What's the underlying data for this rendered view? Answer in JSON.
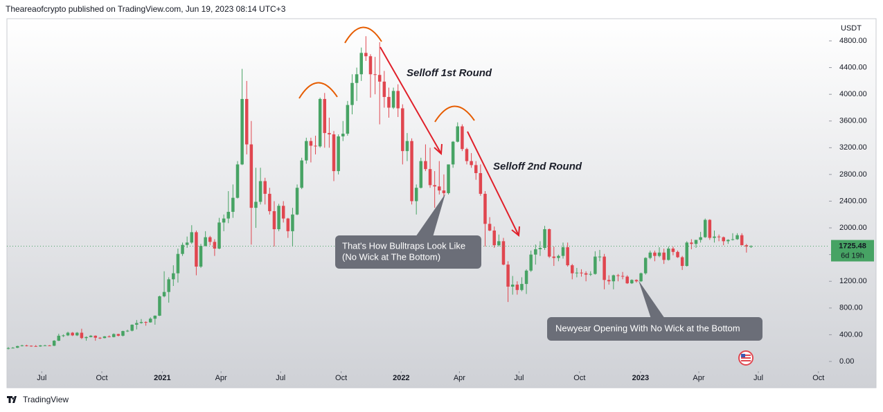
{
  "header": {
    "text": "Theareaofcrypto published on TradingView.com, Jun 19, 2023 08:14 UTC+3"
  },
  "footer": {
    "text": "TradingView"
  },
  "chart_data": {
    "type": "candlestick",
    "unit": "USDT",
    "up_color": "#47a364",
    "down_color": "#e0464f",
    "countdown": "6d 19h",
    "grid": false,
    "annotations": [
      "Selloff 1st Round",
      "Selloff 2nd Round",
      "That's How Bulltraps Look Like",
      "(No Wick at The Bottom)",
      "Newyear Opening With No Wick at the Bottom"
    ],
    "ylim": [
      -135,
      5132
    ],
    "yticks": [
      {
        "value": 0,
        "label": "0.00"
      },
      {
        "value": 400,
        "label": "400.00"
      },
      {
        "value": 800,
        "label": "800.00"
      },
      {
        "value": 1200,
        "label": "1200.00"
      },
      {
        "value": 1600,
        "label": "1600.00"
      },
      {
        "value": 2000,
        "label": "2000.00"
      },
      {
        "value": 2400,
        "label": "2400.00"
      },
      {
        "value": 2800,
        "label": "2800.00"
      },
      {
        "value": 3200,
        "label": "3200.00"
      },
      {
        "value": 3600,
        "label": "3600.00"
      },
      {
        "value": 4000,
        "label": "4000.00"
      },
      {
        "value": 4400,
        "label": "4400.00"
      },
      {
        "value": 4800,
        "label": "4800.00"
      }
    ],
    "xlim": [
      -0.3,
      178.7
    ],
    "xticks": [
      {
        "value": 7.3,
        "label": "Jul"
      },
      {
        "value": 20.4,
        "label": "Oct"
      },
      {
        "value": 33.6,
        "label": "2021"
      },
      {
        "value": 46.4,
        "label": "Apr"
      },
      {
        "value": 59.4,
        "label": "Jul"
      },
      {
        "value": 72.6,
        "label": "Oct"
      },
      {
        "value": 85.7,
        "label": "2022"
      },
      {
        "value": 98.4,
        "label": "Apr"
      },
      {
        "value": 111.4,
        "label": "Jul"
      },
      {
        "value": 124.6,
        "label": "Oct"
      },
      {
        "value": 137.9,
        "label": "2023"
      },
      {
        "value": 150.6,
        "label": "Apr"
      },
      {
        "value": 163.6,
        "label": "Jul"
      },
      {
        "value": 176.7,
        "label": "Oct"
      }
    ],
    "ohlc": [
      [
        190,
        215,
        180,
        200
      ],
      [
        200,
        215,
        195,
        205
      ],
      [
        205,
        235,
        200,
        230
      ],
      [
        230,
        250,
        225,
        240
      ],
      [
        240,
        250,
        225,
        235
      ],
      [
        235,
        240,
        220,
        230
      ],
      [
        230,
        245,
        220,
        225
      ],
      [
        225,
        245,
        220,
        240
      ],
      [
        240,
        250,
        235,
        240
      ],
      [
        240,
        245,
        230,
        235
      ],
      [
        235,
        320,
        230,
        310
      ],
      [
        310,
        415,
        305,
        385
      ],
      [
        385,
        405,
        365,
        390
      ],
      [
        390,
        445,
        380,
        430
      ],
      [
        430,
        440,
        380,
        390
      ],
      [
        390,
        440,
        380,
        430
      ],
      [
        430,
        490,
        335,
        350
      ],
      [
        350,
        375,
        310,
        365
      ],
      [
        365,
        395,
        360,
        385
      ],
      [
        385,
        390,
        310,
        355
      ],
      [
        355,
        365,
        335,
        350
      ],
      [
        350,
        380,
        345,
        375
      ],
      [
        375,
        390,
        360,
        365
      ],
      [
        365,
        420,
        360,
        410
      ],
      [
        410,
        415,
        375,
        385
      ],
      [
        385,
        460,
        375,
        455
      ],
      [
        455,
        475,
        440,
        460
      ],
      [
        460,
        555,
        450,
        550
      ],
      [
        550,
        620,
        480,
        575
      ],
      [
        575,
        635,
        565,
        590
      ],
      [
        590,
        600,
        535,
        585
      ],
      [
        585,
        660,
        580,
        640
      ],
      [
        640,
        690,
        550,
        685
      ],
      [
        685,
        985,
        680,
        975
      ],
      [
        975,
        1350,
        960,
        1040
      ],
      [
        1040,
        1260,
        880,
        1230
      ],
      [
        1230,
        1440,
        1130,
        1320
      ],
      [
        1320,
        1690,
        1180,
        1610
      ],
      [
        1610,
        1780,
        1580,
        1745
      ],
      [
        1745,
        1870,
        1700,
        1780
      ],
      [
        1780,
        2040,
        1760,
        1935
      ],
      [
        1935,
        1960,
        1290,
        1420
      ],
      [
        1420,
        1760,
        1400,
        1730
      ],
      [
        1730,
        1950,
        1720,
        1860
      ],
      [
        1860,
        1880,
        1740,
        1790
      ],
      [
        1790,
        1830,
        1580,
        1690
      ],
      [
        1690,
        2150,
        1680,
        2080
      ],
      [
        2080,
        2200,
        1950,
        2140
      ],
      [
        2140,
        2550,
        2070,
        2240
      ],
      [
        2240,
        2650,
        2150,
        2450
      ],
      [
        2450,
        3000,
        2440,
        2950
      ],
      [
        2950,
        4380,
        2940,
        3930
      ],
      [
        3930,
        4200,
        3100,
        3250
      ],
      [
        3250,
        3600,
        1750,
        2300
      ],
      [
        2300,
        2900,
        2000,
        2390
      ],
      [
        2390,
        2900,
        2350,
        2700
      ],
      [
        2700,
        2750,
        2350,
        2510
      ],
      [
        2510,
        2600,
        2200,
        2250
      ],
      [
        2250,
        2400,
        1720,
        1980
      ],
      [
        1980,
        2360,
        1950,
        2330
      ],
      [
        2330,
        2400,
        2080,
        2140
      ],
      [
        2140,
        2150,
        1850,
        1950
      ],
      [
        1950,
        2300,
        1720,
        2200
      ],
      [
        2200,
        2650,
        2190,
        2600
      ],
      [
        2600,
        3050,
        2580,
        3010
      ],
      [
        3010,
        3350,
        2960,
        3300
      ],
      [
        3300,
        3350,
        2980,
        3230
      ],
      [
        3230,
        3380,
        3100,
        3220
      ],
      [
        3220,
        3950,
        3200,
        3930
      ],
      [
        3930,
        4020,
        3200,
        3420
      ],
      [
        3420,
        3650,
        3200,
        3400
      ],
      [
        3400,
        3450,
        2700,
        2850
      ],
      [
        2850,
        3400,
        2800,
        3370
      ],
      [
        3370,
        3600,
        3300,
        3410
      ],
      [
        3410,
        3900,
        3380,
        3840
      ],
      [
        3840,
        4300,
        3700,
        4170
      ],
      [
        4170,
        4400,
        3900,
        4300
      ],
      [
        4300,
        4700,
        4200,
        4620
      ],
      [
        4620,
        4870,
        4500,
        4570
      ],
      [
        4570,
        4600,
        3950,
        4300
      ],
      [
        4300,
        4560,
        4000,
        4290
      ],
      [
        4290,
        4780,
        3550,
        4190
      ],
      [
        4190,
        4350,
        3800,
        3960
      ],
      [
        3960,
        4100,
        3650,
        3800
      ],
      [
        3800,
        4100,
        3780,
        4050
      ],
      [
        4050,
        4150,
        3660,
        3790
      ],
      [
        3790,
        3850,
        2950,
        3150
      ],
      [
        3150,
        3420,
        3000,
        3300
      ],
      [
        3300,
        3340,
        2350,
        2400
      ],
      [
        2400,
        2650,
        2200,
        2600
      ],
      [
        2600,
        3050,
        2590,
        3000
      ],
      [
        3000,
        3250,
        2850,
        2880
      ],
      [
        2880,
        3200,
        2600,
        2640
      ],
      [
        2640,
        2850,
        2300,
        2620
      ],
      [
        2620,
        3000,
        2500,
        2560
      ],
      [
        2560,
        2800,
        2450,
        2520
      ],
      [
        2520,
        2950,
        2500,
        2950
      ],
      [
        2950,
        3300,
        2900,
        3290
      ],
      [
        3290,
        3580,
        3280,
        3520
      ],
      [
        3520,
        3550,
        3150,
        3180
      ],
      [
        3180,
        3200,
        2950,
        3000
      ],
      [
        3000,
        3120,
        2900,
        2940
      ],
      [
        2940,
        3000,
        2720,
        2820
      ],
      [
        2820,
        2950,
        2480,
        2510
      ],
      [
        2510,
        2550,
        1720,
        2060
      ],
      [
        2060,
        2160,
        1950,
        1960
      ],
      [
        1960,
        2020,
        1700,
        1740
      ],
      [
        1740,
        1900,
        1720,
        1800
      ],
      [
        1800,
        1850,
        1440,
        1450
      ],
      [
        1450,
        1500,
        890,
        1120
      ],
      [
        1120,
        1280,
        1000,
        1150
      ],
      [
        1150,
        1200,
        1000,
        1070
      ],
      [
        1070,
        1260,
        1050,
        1160
      ],
      [
        1160,
        1380,
        1010,
        1360
      ],
      [
        1360,
        1660,
        1340,
        1600
      ],
      [
        1600,
        1750,
        1450,
        1680
      ],
      [
        1680,
        1800,
        1580,
        1700
      ],
      [
        1700,
        2030,
        1670,
        1980
      ],
      [
        1980,
        1990,
        1550,
        1570
      ],
      [
        1570,
        1720,
        1430,
        1550
      ],
      [
        1550,
        1600,
        1500,
        1580
      ],
      [
        1580,
        1780,
        1540,
        1710
      ],
      [
        1710,
        1780,
        1420,
        1440
      ],
      [
        1440,
        1460,
        1230,
        1320
      ],
      [
        1320,
        1400,
        1260,
        1330
      ],
      [
        1330,
        1380,
        1270,
        1320
      ],
      [
        1320,
        1350,
        1200,
        1300
      ],
      [
        1300,
        1350,
        1280,
        1310
      ],
      [
        1310,
        1650,
        1300,
        1570
      ],
      [
        1570,
        1670,
        1500,
        1570
      ],
      [
        1570,
        1610,
        1080,
        1220
      ],
      [
        1220,
        1290,
        1150,
        1200
      ],
      [
        1200,
        1300,
        1080,
        1290
      ],
      [
        1290,
        1310,
        1200,
        1280
      ],
      [
        1280,
        1340,
        1230,
        1270
      ],
      [
        1270,
        1290,
        1160,
        1170
      ],
      [
        1170,
        1230,
        1160,
        1220
      ],
      [
        1220,
        1230,
        1180,
        1200
      ],
      [
        1200,
        1330,
        1190,
        1320
      ],
      [
        1320,
        1560,
        1300,
        1550
      ],
      [
        1550,
        1660,
        1530,
        1630
      ],
      [
        1630,
        1660,
        1500,
        1580
      ],
      [
        1580,
        1710,
        1560,
        1630
      ],
      [
        1630,
        1690,
        1460,
        1520
      ],
      [
        1520,
        1720,
        1510,
        1690
      ],
      [
        1690,
        1720,
        1590,
        1640
      ],
      [
        1640,
        1660,
        1550,
        1560
      ],
      [
        1560,
        1580,
        1370,
        1430
      ],
      [
        1430,
        1800,
        1420,
        1780
      ],
      [
        1780,
        1830,
        1680,
        1760
      ],
      [
        1760,
        1820,
        1700,
        1820
      ],
      [
        1820,
        1940,
        1780,
        1860
      ],
      [
        1860,
        2140,
        1850,
        2120
      ],
      [
        2120,
        2130,
        1820,
        1850
      ],
      [
        1850,
        1960,
        1780,
        1870
      ],
      [
        1870,
        1900,
        1800,
        1860
      ],
      [
        1860,
        1870,
        1740,
        1800
      ],
      [
        1800,
        1830,
        1760,
        1820
      ],
      [
        1820,
        1920,
        1810,
        1830
      ],
      [
        1830,
        1920,
        1820,
        1890
      ],
      [
        1890,
        1920,
        1740,
        1740
      ],
      [
        1740,
        1760,
        1630,
        1720
      ],
      [
        1720,
        1740,
        1700,
        1725.48
      ]
    ]
  }
}
